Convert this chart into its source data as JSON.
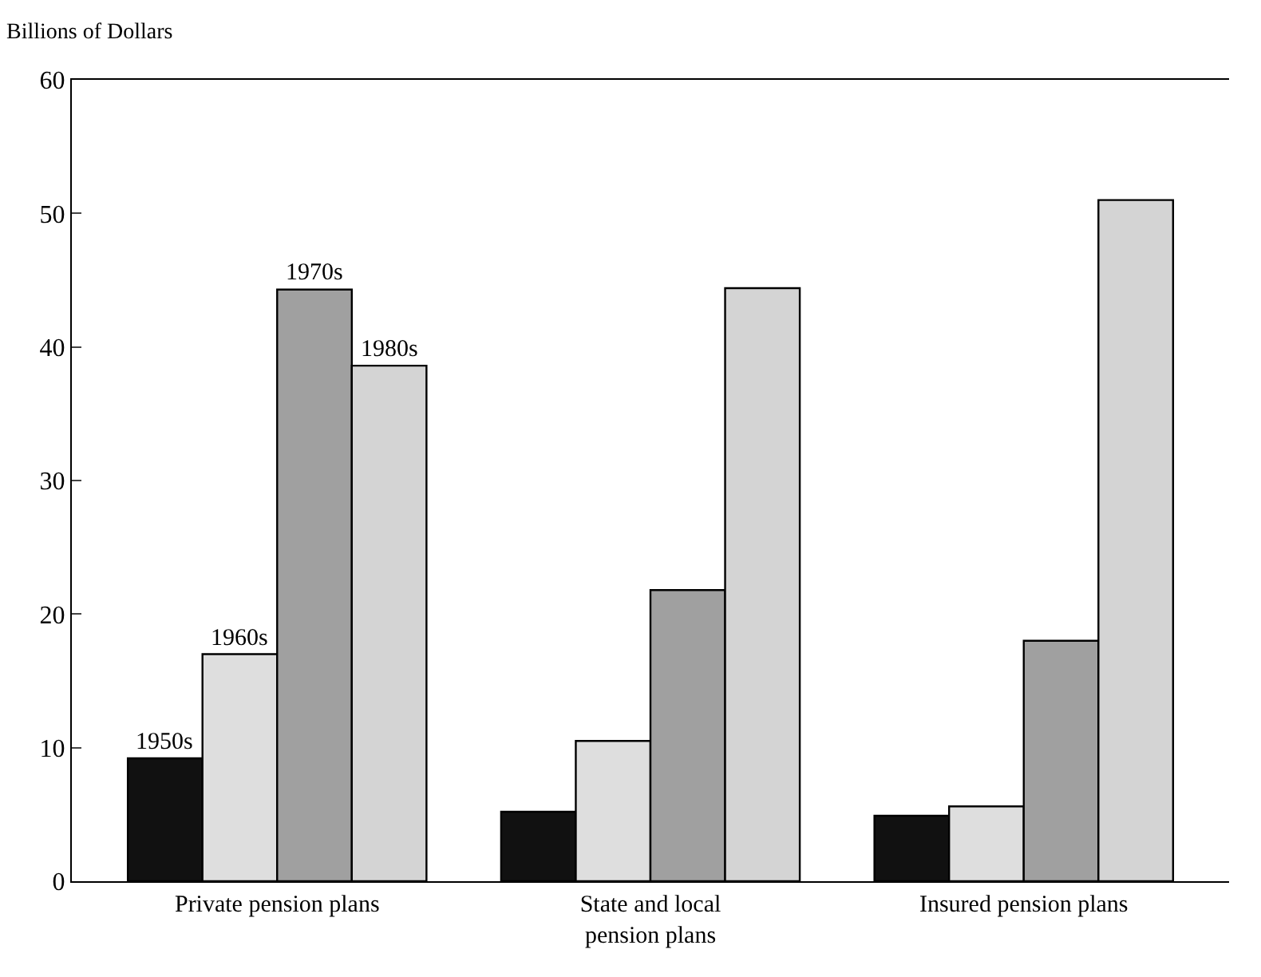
{
  "chart_data": {
    "type": "bar",
    "ylabel": "Billions of Dollars",
    "categories": [
      "Private pension plans",
      "State and local\npension plans",
      "Insured pension plans"
    ],
    "series": [
      {
        "name": "1950s",
        "color": "#111111",
        "values": [
          9.2,
          5.2,
          4.9
        ]
      },
      {
        "name": "1960s",
        "color": "#dedede",
        "values": [
          17,
          10.5,
          5.6
        ]
      },
      {
        "name": "1970s",
        "color": "#a0a0a0",
        "values": [
          44.3,
          21.8,
          18
        ]
      },
      {
        "name": "1980s",
        "color": "#d4d4d4",
        "values": [
          38.6,
          44.4,
          51
        ]
      }
    ],
    "ylim": [
      0,
      60
    ],
    "yticks": [
      0,
      10,
      20,
      30,
      40,
      50,
      60
    ],
    "legend": false
  }
}
